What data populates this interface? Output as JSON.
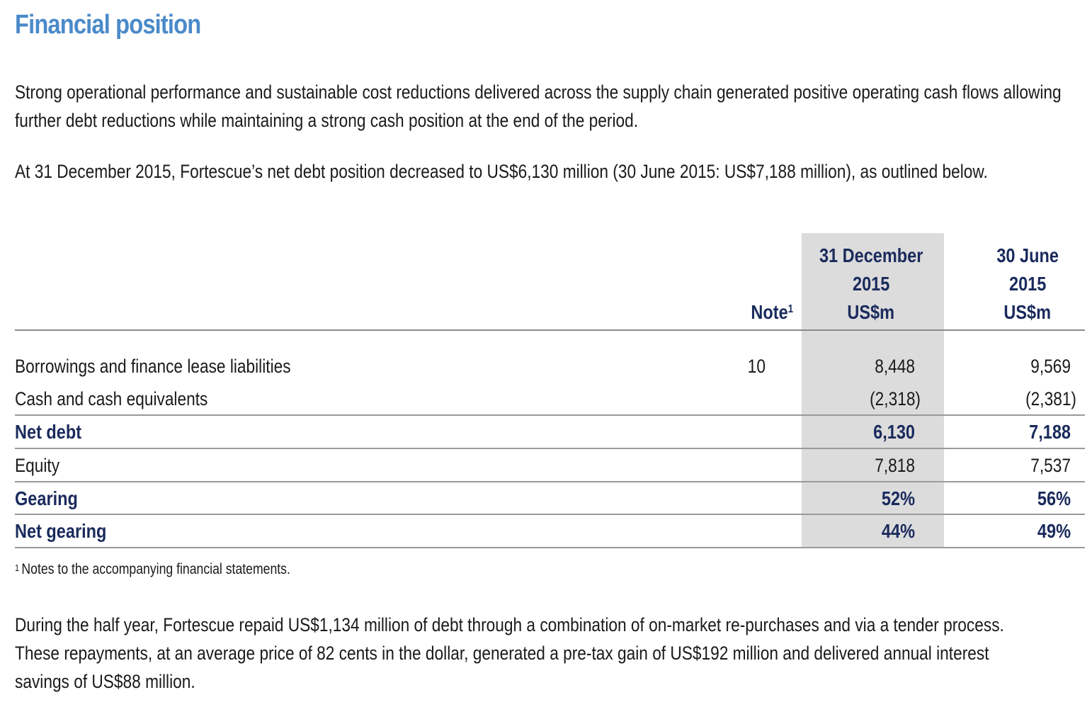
{
  "title": "Financial position",
  "paragraphs": {
    "intro_line1": "Strong operational performance and sustainable cost reductions delivered across the supply chain generated positive operating cash flows allowing",
    "intro_line2": "further debt reductions while maintaining a strong cash position at the end of the period.",
    "net_debt_summary": "At 31 December 2015, Fortescue’s net debt position decreased to US$6,130 million (30 June 2015: US$7,188 million), as outlined below.",
    "closing_line1": "During the half year, Fortescue repaid US$1,134 million of debt through a combination of on-market re-purchases and via a tender process.",
    "closing_line2": "These repayments, at an average price of 82 cents in the dollar, generated a pre-tax gain of US$192 million and delivered annual interest",
    "closing_line3": "savings of US$88 million."
  },
  "table": {
    "header": {
      "note": "Note",
      "note_marker": "1",
      "dec_line1": "31 December",
      "dec_line2": "2015",
      "dec_line3": "US$m",
      "jun_line1": "30 June",
      "jun_line2": "2015",
      "jun_line3": "US$m"
    },
    "rows": [
      {
        "label": "Borrowings and finance lease liabilities",
        "note": "10",
        "dec": "8,448",
        "jun": "9,569"
      },
      {
        "label": "Cash and cash equivalents",
        "note": "",
        "dec": "(2,318)",
        "jun": "(2,381)"
      },
      {
        "label": "Net debt",
        "note": "",
        "dec": "6,130",
        "jun": "7,188"
      },
      {
        "label": "Equity",
        "note": "",
        "dec": "7,818",
        "jun": "7,537"
      },
      {
        "label": "Gearing",
        "note": "",
        "dec": "52%",
        "jun": "56%"
      },
      {
        "label": "Net gearing",
        "note": "",
        "dec": "44%",
        "jun": "49%"
      }
    ]
  },
  "footnote": {
    "marker": "1",
    "text": "Notes to the accompanying financial statements."
  },
  "colors": {
    "title": "#4a8ac9",
    "emphasis": "#1a2a5c",
    "highlight_column": "#dcdcdc",
    "rule": "#9a9a9a"
  }
}
